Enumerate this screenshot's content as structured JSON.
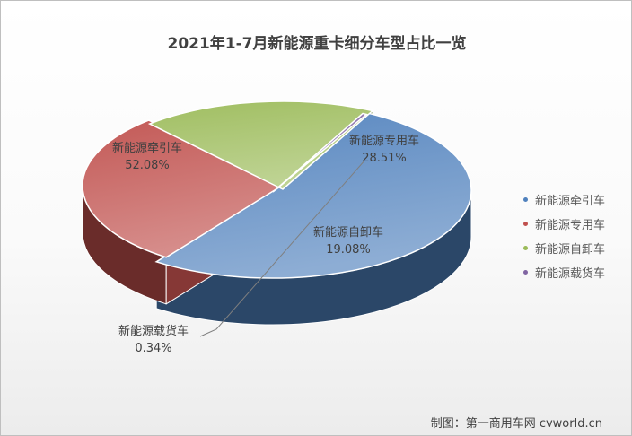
{
  "chart_data": {
    "type": "pie",
    "title": "2021年1-7月新能源重卡细分车型占比一览",
    "categories": [
      "新能源牵引车",
      "新能源专用车",
      "新能源自卸车",
      "新能源载货车"
    ],
    "values": [
      52.08,
      28.51,
      19.08,
      0.34
    ],
    "value_labels": [
      "52.08%",
      "28.51%",
      "19.08%",
      "0.34%"
    ],
    "legend_position": "right",
    "colors": [
      "#4f81bd",
      "#c0504d",
      "#9bbb59",
      "#8064a2"
    ]
  },
  "credit": "制图：第一商用车网 cvworld.cn"
}
